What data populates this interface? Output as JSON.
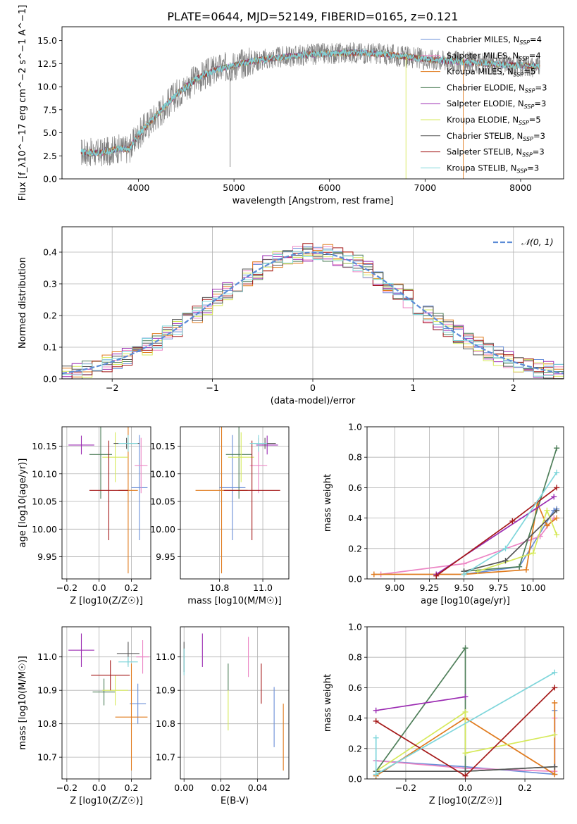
{
  "title": "PLATE=0644, MJD=52149, FIBERID=0165, z=0.121",
  "models": [
    {
      "name": "Chabrier MILES",
      "nssp": "4",
      "color": "#6a8fd8"
    },
    {
      "name": "Salpeter MILES",
      "nssp": "4",
      "color": "#ec86c5"
    },
    {
      "name": "Kroupa MILES",
      "nssp": "5",
      "color": "#e07b1e"
    },
    {
      "name": "Chabrier ELODIE",
      "nssp": "3",
      "color": "#4f7f5a"
    },
    {
      "name": "Salpeter ELODIE",
      "nssp": "3",
      "color": "#9b2bb2"
    },
    {
      "name": "Kroupa ELODIE",
      "nssp": "5",
      "color": "#d6e95a"
    },
    {
      "name": "Chabrier STELIB",
      "nssp": "3",
      "color": "#555555"
    },
    {
      "name": "Salpeter STELIB",
      "nssp": "3",
      "color": "#a51a1a"
    },
    {
      "name": "Kroupa STELIB",
      "nssp": "3",
      "color": "#7fd6db"
    }
  ],
  "chart_data": [
    {
      "id": "spectrum",
      "type": "line",
      "xlabel": "wavelength [Angstrom, rest frame]",
      "ylabel": "Flux [f_λ10^−17 erg cm^−2 s^−1 A^−1]",
      "xlim": [
        3200,
        8450
      ],
      "ylim": [
        0,
        16.5
      ],
      "xticks": [
        4000,
        5000,
        6000,
        7000,
        8000
      ],
      "yticks": [
        0.0,
        2.5,
        5.0,
        7.5,
        10.0,
        12.5,
        15.0
      ],
      "continuum": {
        "x": [
          3400,
          3600,
          3800,
          3900,
          4000,
          4200,
          4400,
          4600,
          4800,
          5000,
          5200,
          5500,
          5800,
          6000,
          6300,
          6600,
          7000,
          7400,
          7800,
          8200
        ],
        "y": [
          2.9,
          2.8,
          3.3,
          3.2,
          4.8,
          7.0,
          9.2,
          10.8,
          11.8,
          12.3,
          12.8,
          13.2,
          13.5,
          13.6,
          13.7,
          13.5,
          13.0,
          12.7,
          12.4,
          12.2
        ]
      },
      "spikes": [
        {
          "x": 4960,
          "y": 1.3
        },
        {
          "x": 6800,
          "y": 0.0
        },
        {
          "x": 7400,
          "y": 0.0
        }
      ],
      "grid": false,
      "legend": "top-right"
    },
    {
      "id": "residuals",
      "type": "histogram",
      "xlabel": "(data-model)/error",
      "ylabel": "Normed distribution",
      "xlim": [
        -2.5,
        2.5
      ],
      "ylim": [
        0,
        0.48
      ],
      "xticks": [
        -2,
        -1,
        0,
        1,
        2
      ],
      "yticks": [
        0.0,
        0.1,
        0.2,
        0.3,
        0.4
      ],
      "normal_label": "𝒩(0, 1)",
      "normal_color": "#5b8bd6",
      "grid": true,
      "legend": "top-right"
    },
    {
      "id": "age-vs-Z",
      "type": "errorbar",
      "xlabel": "Z [log10(Z/Z☉)]",
      "ylabel": "age  [log10(age/yr)]",
      "xlim": [
        -0.23,
        0.32
      ],
      "ylim": [
        9.91,
        10.185
      ],
      "xticks": [
        -0.2,
        0.0,
        0.2
      ],
      "yticks": [
        9.95,
        10.0,
        10.05,
        10.1,
        10.15
      ],
      "points": [
        {
          "x": 0.25,
          "y": 10.075,
          "xe": 0.05,
          "ye": 0.095
        },
        {
          "x": 0.26,
          "y": 10.115,
          "xe": 0.04,
          "ye": 0.05
        },
        {
          "x": 0.18,
          "y": 10.07,
          "xe": 0.06,
          "ye": 0.15
        },
        {
          "x": 0.01,
          "y": 10.135,
          "xe": 0.07,
          "ye": 0.08
        },
        {
          "x": -0.11,
          "y": 10.152,
          "xe": 0.08,
          "ye": 0.017
        },
        {
          "x": 0.1,
          "y": 10.13,
          "xe": 0.08,
          "ye": 0.045
        },
        {
          "x": 0.17,
          "y": 10.155,
          "xe": 0.08,
          "ye": 0.01
        },
        {
          "x": 0.06,
          "y": 10.07,
          "xe": 0.12,
          "ye": 0.09
        },
        {
          "x": 0.18,
          "y": 10.155,
          "xe": 0.06,
          "ye": 0.015
        }
      ]
    },
    {
      "id": "age-vs-mass",
      "type": "errorbar",
      "xlabel": "mass [log10(M/M☉)]",
      "ylabel": "",
      "xlim": [
        10.62,
        11.12
      ],
      "ylim": [
        9.91,
        10.185
      ],
      "xticks": [
        10.8,
        11.0
      ],
      "yticks": [
        9.95,
        10.0,
        10.05,
        10.1,
        10.15
      ],
      "points": [
        {
          "x": 10.86,
          "y": 10.075,
          "xe": 0.06,
          "ye": 0.095
        },
        {
          "x": 10.98,
          "y": 10.115,
          "xe": 0.04,
          "ye": 0.05
        },
        {
          "x": 10.81,
          "y": 10.07,
          "xe": 0.12,
          "ye": 0.15
        },
        {
          "x": 10.89,
          "y": 10.135,
          "xe": 0.06,
          "ye": 0.08
        },
        {
          "x": 11.02,
          "y": 10.152,
          "xe": 0.05,
          "ye": 0.017
        },
        {
          "x": 10.9,
          "y": 10.13,
          "xe": 0.06,
          "ye": 0.045
        },
        {
          "x": 11.01,
          "y": 10.155,
          "xe": 0.05,
          "ye": 0.01
        },
        {
          "x": 10.95,
          "y": 10.07,
          "xe": 0.13,
          "ye": 0.09
        },
        {
          "x": 10.98,
          "y": 10.155,
          "xe": 0.04,
          "ye": 0.015
        }
      ]
    },
    {
      "id": "mass-weight-vs-age",
      "type": "line",
      "xlabel": "age  [log10(age/yr)]",
      "ylabel": "mass weight",
      "xlim": [
        8.8,
        10.22
      ],
      "ylim": [
        0,
        1.0
      ],
      "xticks": [
        9.0,
        9.25,
        9.5,
        9.75,
        10.0
      ],
      "yticks": [
        0.0,
        0.2,
        0.4,
        0.6,
        0.8,
        1.0
      ],
      "series": [
        {
          "x": [
            9.5,
            9.9,
            10.15,
            10.17
          ],
          "y": [
            0.03,
            0.08,
            0.45,
            0.46
          ]
        },
        {
          "x": [
            8.9,
            9.5,
            10.05,
            10.15
          ],
          "y": [
            0.03,
            0.1,
            0.28,
            0.4
          ]
        },
        {
          "x": [
            8.85,
            9.3,
            9.5,
            9.95,
            10.03,
            10.1,
            10.17
          ],
          "y": [
            0.03,
            0.03,
            0.03,
            0.06,
            0.5,
            0.35,
            0.4
          ]
        },
        {
          "x": [
            9.5,
            9.9,
            10.17
          ],
          "y": [
            0.05,
            0.08,
            0.86
          ]
        },
        {
          "x": [
            9.3,
            10.15
          ],
          "y": [
            0.03,
            0.54
          ]
        },
        {
          "x": [
            9.6,
            10.0,
            10.1,
            10.17
          ],
          "y": [
            0.05,
            0.17,
            0.45,
            0.29
          ]
        },
        {
          "x": [
            9.5,
            9.8,
            10.17
          ],
          "y": [
            0.05,
            0.12,
            0.45
          ]
        },
        {
          "x": [
            9.3,
            9.85,
            10.17
          ],
          "y": [
            0.02,
            0.38,
            0.6
          ]
        },
        {
          "x": [
            9.5,
            9.8,
            10.17
          ],
          "y": [
            0.03,
            0.2,
            0.7
          ]
        }
      ]
    },
    {
      "id": "mass-vs-Z",
      "type": "errorbar",
      "xlabel": "Z [log10(Z/Z☉)]",
      "ylabel": "mass [log10(M/M☉)]",
      "xlim": [
        -0.23,
        0.32
      ],
      "ylim": [
        10.635,
        11.09
      ],
      "xticks": [
        -0.2,
        0.0,
        0.2
      ],
      "yticks": [
        10.7,
        10.8,
        10.9,
        11.0
      ],
      "points": [
        {
          "x": 0.24,
          "y": 10.86,
          "xe": 0.05,
          "ye": 0.06
        },
        {
          "x": 0.27,
          "y": 11.0,
          "xe": 0.04,
          "ye": 0.05
        },
        {
          "x": 0.2,
          "y": 10.82,
          "xe": 0.1,
          "ye": 0.16
        },
        {
          "x": 0.03,
          "y": 10.895,
          "xe": 0.07,
          "ye": 0.04
        },
        {
          "x": -0.11,
          "y": 11.02,
          "xe": 0.08,
          "ye": 0.05
        },
        {
          "x": 0.1,
          "y": 10.9,
          "xe": 0.08,
          "ye": 0.045
        },
        {
          "x": 0.18,
          "y": 11.01,
          "xe": 0.07,
          "ye": 0.035
        },
        {
          "x": 0.07,
          "y": 10.945,
          "xe": 0.12,
          "ye": 0.045
        },
        {
          "x": 0.18,
          "y": 10.985,
          "xe": 0.06,
          "ye": 0.015
        }
      ]
    },
    {
      "id": "mass-vs-EBV",
      "type": "errorbar",
      "xlabel": "E(B-V)",
      "ylabel": "",
      "xlim": [
        -0.002,
        0.057
      ],
      "ylim": [
        10.635,
        11.09
      ],
      "xticks": [
        0.0,
        0.02,
        0.04
      ],
      "yticks": [
        10.7,
        10.8,
        10.9,
        11.0
      ],
      "points": [
        {
          "x": 0.049,
          "y": 10.82,
          "xe": 0,
          "ye": 0.09
        },
        {
          "x": 0.035,
          "y": 11.0,
          "xe": 0,
          "ye": 0.06
        },
        {
          "x": 0.054,
          "y": 10.76,
          "xe": 0,
          "ye": 0.1
        },
        {
          "x": 0.024,
          "y": 10.94,
          "xe": 0,
          "ye": 0.04
        },
        {
          "x": 0.01,
          "y": 11.02,
          "xe": 0,
          "ye": 0.05
        },
        {
          "x": 0.024,
          "y": 10.84,
          "xe": 0,
          "ye": 0.06
        },
        {
          "x": 0.0,
          "y": 11.0,
          "xe": 0,
          "ye": 0.045
        },
        {
          "x": 0.042,
          "y": 10.92,
          "xe": 0,
          "ye": 0.06
        },
        {
          "x": 0.0,
          "y": 10.985,
          "xe": 0,
          "ye": 0.04
        }
      ]
    },
    {
      "id": "mass-weight-vs-Z",
      "type": "line",
      "xlabel": "Z [log10(Z/Z☉)]",
      "ylabel": "mass weight",
      "xlim": [
        -0.33,
        0.33
      ],
      "ylim": [
        0,
        1.0
      ],
      "xticks": [
        -0.2,
        0.0,
        0.2
      ],
      "yticks": [
        0.0,
        0.2,
        0.4,
        0.6,
        0.8,
        1.0
      ],
      "series": [
        {
          "x": [
            -0.3,
            0.0,
            0.3,
            0.3
          ],
          "y": [
            0.12,
            0.08,
            0.03,
            0.45
          ]
        },
        {
          "x": [
            -0.3,
            0.0,
            0.3,
            0.3
          ],
          "y": [
            0.12,
            0.07,
            0.05,
            0.4
          ]
        },
        {
          "x": [
            -0.3,
            0.0,
            0.3,
            0.3
          ],
          "y": [
            0.02,
            0.4,
            0.03,
            0.5
          ]
        },
        {
          "x": [
            -0.3,
            0.0,
            0.0,
            0.3
          ],
          "y": [
            0.05,
            0.86,
            0.05,
            0.08
          ]
        },
        {
          "x": [
            -0.3,
            0.0
          ],
          "y": [
            0.45,
            0.54
          ]
        },
        {
          "x": [
            -0.3,
            0.0,
            0.0,
            0.3
          ],
          "y": [
            0.05,
            0.44,
            0.17,
            0.29
          ]
        },
        {
          "x": [
            -0.3,
            0.0,
            0.3
          ],
          "y": [
            0.05,
            0.05,
            0.08
          ]
        },
        {
          "x": [
            -0.3,
            0.0,
            0.3
          ],
          "y": [
            0.38,
            0.02,
            0.6
          ]
        },
        {
          "x": [
            -0.3,
            -0.3,
            0.3
          ],
          "y": [
            0.27,
            0.03,
            0.7
          ]
        }
      ]
    }
  ]
}
